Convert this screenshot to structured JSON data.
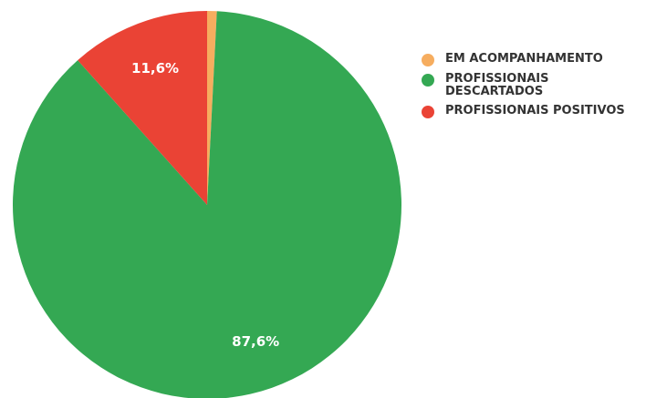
{
  "chart_data": {
    "type": "pie",
    "categories": [
      "EM ACOMPANHAMENTO",
      "PROFISSIONAIS DESCARTADOS",
      "PROFISSIONAIS POSITIVOS"
    ],
    "values": [
      0.8,
      87.6,
      11.6
    ],
    "value_labels": [
      null,
      "87,6%",
      "11,6%"
    ],
    "colors": [
      "#f6ad5f",
      "#34a853",
      "#ea4335"
    ],
    "legend": "right"
  }
}
